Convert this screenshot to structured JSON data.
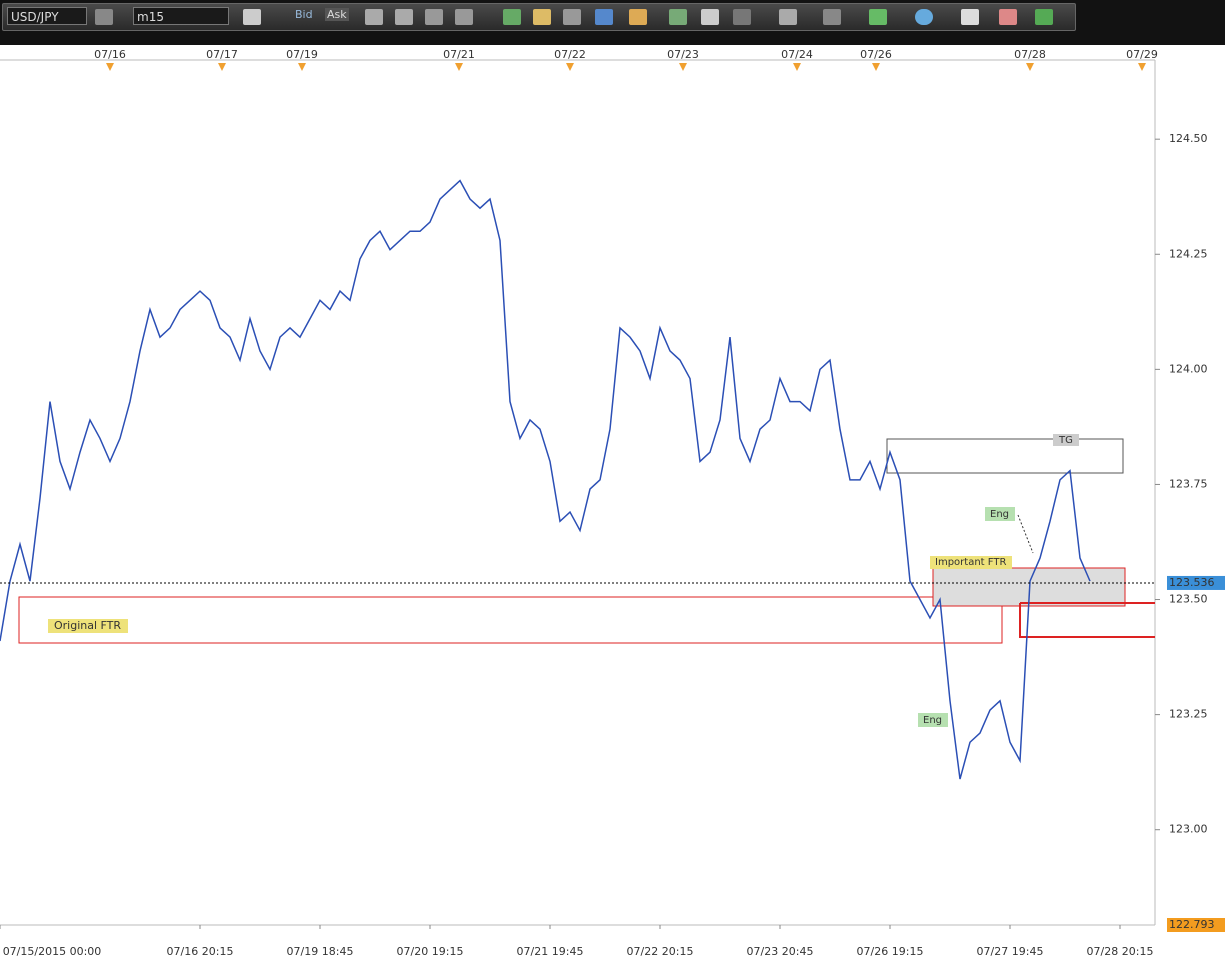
{
  "toolbar": {
    "symbol": "USD/JPY",
    "timeframe": "m15",
    "bid": "Bid",
    "ask": "Ask"
  },
  "chart_data": {
    "type": "line",
    "categories": [
      "07/15/2015 00:00",
      null,
      null,
      null,
      null,
      null,
      null,
      null,
      null,
      null,
      null,
      null,
      null,
      null,
      null,
      null,
      null,
      null,
      null,
      null,
      "07/16 20:15",
      null,
      null,
      null,
      null,
      null,
      null,
      null,
      null,
      null,
      null,
      null,
      "07/19 18:45",
      null,
      null,
      null,
      null,
      null,
      null,
      null,
      null,
      null,
      null,
      "07/20 19:15",
      null,
      null,
      null,
      null,
      null,
      null,
      null,
      null,
      null,
      null,
      null,
      "07/21 19:45",
      null,
      null,
      null,
      null,
      null,
      null,
      null,
      null,
      null,
      null,
      "07/22 20:15",
      null,
      null,
      null,
      null,
      null,
      null,
      null,
      null,
      null,
      null,
      null,
      "07/23 20:45",
      null,
      null,
      null,
      null,
      null,
      null,
      null,
      null,
      null,
      null,
      "07/26 19:15",
      null,
      null,
      null,
      null,
      null,
      null,
      null,
      null,
      null,
      null,
      null,
      "07/27 19:45",
      null,
      null,
      null,
      null,
      null,
      null,
      null,
      null,
      null,
      null,
      "07/28 20:15"
    ],
    "values": [
      123.41,
      123.54,
      123.62,
      123.54,
      123.72,
      123.93,
      123.8,
      123.74,
      123.82,
      123.89,
      123.85,
      123.8,
      123.85,
      123.93,
      124.04,
      124.13,
      124.07,
      124.09,
      124.13,
      124.15,
      124.17,
      124.15,
      124.09,
      124.07,
      124.02,
      124.11,
      124.04,
      124.0,
      124.07,
      124.09,
      124.07,
      124.11,
      124.15,
      124.13,
      124.17,
      124.15,
      124.24,
      124.28,
      124.3,
      124.26,
      124.28,
      124.3,
      124.3,
      124.32,
      124.37,
      124.39,
      124.41,
      124.37,
      124.35,
      124.37,
      124.28,
      123.93,
      123.85,
      123.89,
      123.87,
      123.8,
      123.67,
      123.69,
      123.65,
      123.74,
      123.76,
      123.87,
      124.09,
      124.07,
      124.04,
      123.98,
      124.09,
      124.04,
      124.02,
      123.98,
      123.8,
      123.82,
      123.89,
      124.07,
      123.85,
      123.8,
      123.87,
      123.89,
      123.98,
      123.93,
      123.93,
      123.91,
      124.0,
      124.02,
      123.87,
      123.76,
      123.76,
      123.8,
      123.74,
      123.82,
      123.76,
      123.54,
      123.5,
      123.46,
      123.5,
      123.28,
      123.11,
      123.19,
      123.21,
      123.26,
      123.28,
      123.19,
      123.15,
      123.54,
      123.59,
      123.67,
      123.76,
      123.78,
      123.59,
      123.54,
      null,
      null,
      null
    ],
    "color": "#2b4fb5",
    "ylim": [
      122.793,
      124.672
    ],
    "yticks": [
      {
        "value": 123,
        "label": "123.00"
      },
      {
        "value": 123.25,
        "label": "123.25"
      },
      {
        "value": 123.5,
        "label": "123.50"
      },
      {
        "value": 123.75,
        "label": "123.75"
      },
      {
        "value": 124,
        "label": "124.00"
      },
      {
        "value": 124.25,
        "label": "124.25"
      },
      {
        "value": 124.5,
        "label": "124.50"
      }
    ],
    "current_price": 123.536,
    "top_dates": [
      "07/16",
      "07/17",
      "07/19",
      "07/21",
      "07/22",
      "07/23",
      "07/24",
      "07/26",
      "07/28",
      "07/29"
    ],
    "annotations": {
      "original_ftr": "Original FTR",
      "important_ftr": "Important FTR",
      "eng_1": "Eng",
      "eng_2": "Eng",
      "tg": "TG"
    }
  }
}
